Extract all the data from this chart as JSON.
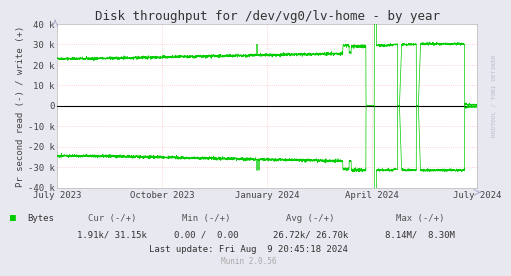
{
  "title": "Disk throughput for /dev/vg0/lv-home - by year",
  "ylabel": "Pr second read (-) / write (+)",
  "background_color": "#e8e8f0",
  "plot_bg_color": "#ffffff",
  "grid_color": "#ffaaaa",
  "line_color": "#00cc00",
  "zero_line_color": "#000000",
  "ylim": [
    -40000,
    40000
  ],
  "yticks": [
    -40000,
    -30000,
    -20000,
    -10000,
    0,
    10000,
    20000,
    30000,
    40000
  ],
  "ytick_labels": [
    "-40 k",
    "-30 k",
    "-20 k",
    "-10 k",
    "0",
    "10 k",
    "20 k",
    "30 k",
    "40 k"
  ],
  "xtick_labels": [
    "July 2023",
    "October 2023",
    "January 2024",
    "April 2024",
    "July 2024"
  ],
  "legend_label": "Bytes",
  "legend_color": "#00cc00",
  "last_update": "Last update: Fri Aug  9 20:45:18 2024",
  "munin_text": "Munin 2.0.56",
  "watermark": "RRDTOOL / TOBI OETIKER",
  "title_fontsize": 9,
  "axis_fontsize": 6.5,
  "footer_fontsize": 6.5
}
